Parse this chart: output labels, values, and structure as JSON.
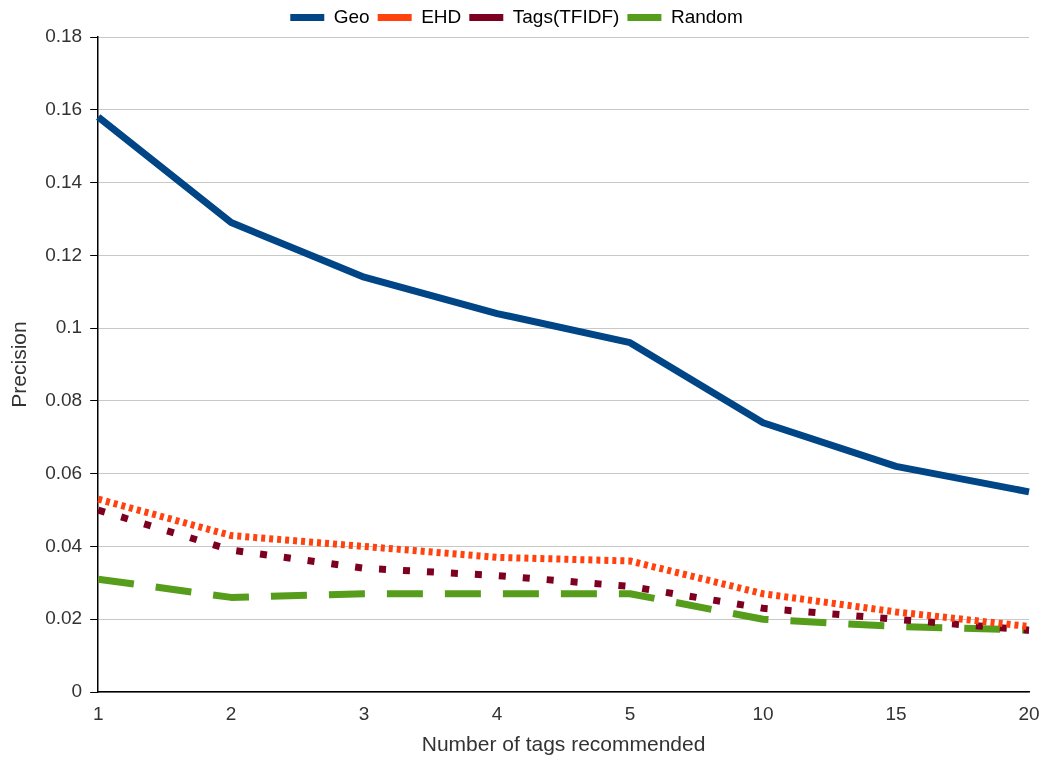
{
  "chart_data": {
    "type": "line",
    "xlabel": "Number of tags recommended",
    "ylabel": "Precision",
    "categories": [
      "1",
      "2",
      "3",
      "4",
      "5",
      "10",
      "15",
      "20"
    ],
    "series": [
      {
        "name": "Geo",
        "color": "#004586",
        "line_style": "solid",
        "values": [
          0.158,
          0.129,
          0.114,
          0.104,
          0.096,
          0.074,
          0.062,
          0.055
        ]
      },
      {
        "name": "EHD",
        "color": "#ff420e",
        "line_style": "dotted",
        "values": [
          0.053,
          0.043,
          0.04,
          0.037,
          0.036,
          0.027,
          0.022,
          0.018
        ]
      },
      {
        "name": "Tags(TFIDF)",
        "color": "#7e0021",
        "line_style": "dotted",
        "values": [
          0.05,
          0.039,
          0.034,
          0.032,
          0.029,
          0.023,
          0.02,
          0.017
        ]
      },
      {
        "name": "Random",
        "color": "#579d1c",
        "line_style": "dashed",
        "values": [
          0.031,
          0.026,
          0.027,
          0.027,
          0.027,
          0.02,
          0.018,
          0.017
        ]
      }
    ],
    "ylim": [
      0,
      0.18
    ],
    "yticks": [
      0,
      0.02,
      0.04,
      0.06,
      0.08,
      0.1,
      0.12,
      0.14,
      0.16,
      0.18
    ],
    "grid": "y",
    "legend": "top",
    "marker": "none"
  }
}
